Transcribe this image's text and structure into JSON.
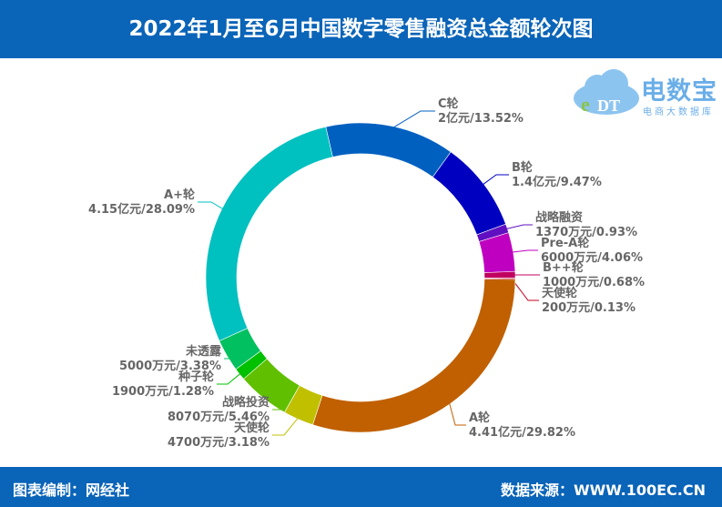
{
  "header": {
    "title": "2022年1月至6月中国数字零售融资总金额轮次图"
  },
  "footer": {
    "left": "图表编制：网经社",
    "right": "数据来源：WWW.100EC.CN"
  },
  "logo": {
    "brand": "电数宝",
    "sub": "电商大数据库",
    "mark": "eDT"
  },
  "chart_data": {
    "type": "pie",
    "subtype": "donut",
    "title": "2022年1月至6月中国数字零售融资总金额轮次图",
    "slices": [
      {
        "name": "C轮",
        "amount": "2亿元",
        "percent": 13.52,
        "color": "#0060c0"
      },
      {
        "name": "B轮",
        "amount": "1.4亿元",
        "percent": 9.47,
        "color": "#0000c0"
      },
      {
        "name": "战略融资",
        "amount": "1370万元",
        "percent": 0.93,
        "color": "#6010c0"
      },
      {
        "name": "Pre-A轮",
        "amount": "6000万元",
        "percent": 4.06,
        "color": "#c000c0"
      },
      {
        "name": "B++轮",
        "amount": "1000万元",
        "percent": 0.68,
        "color": "#c00060"
      },
      {
        "name": "天使轮",
        "amount": "200万元",
        "percent": 0.13,
        "color": "#c00020"
      },
      {
        "name": "A轮",
        "amount": "4.41亿元",
        "percent": 29.82,
        "color": "#c06000"
      },
      {
        "name": "天使轮",
        "amount": "4700万元",
        "percent": 3.18,
        "color": "#c0c000"
      },
      {
        "name": "战略投资",
        "amount": "8070万元",
        "percent": 5.46,
        "color": "#60c000"
      },
      {
        "name": "种子轮",
        "amount": "1900万元",
        "percent": 1.28,
        "color": "#00c000"
      },
      {
        "name": "未透露",
        "amount": "5000万元",
        "percent": 3.38,
        "color": "#00c060"
      },
      {
        "name": "A+轮",
        "amount": "4.15亿元",
        "percent": 28.09,
        "color": "#00c0c0"
      }
    ]
  }
}
